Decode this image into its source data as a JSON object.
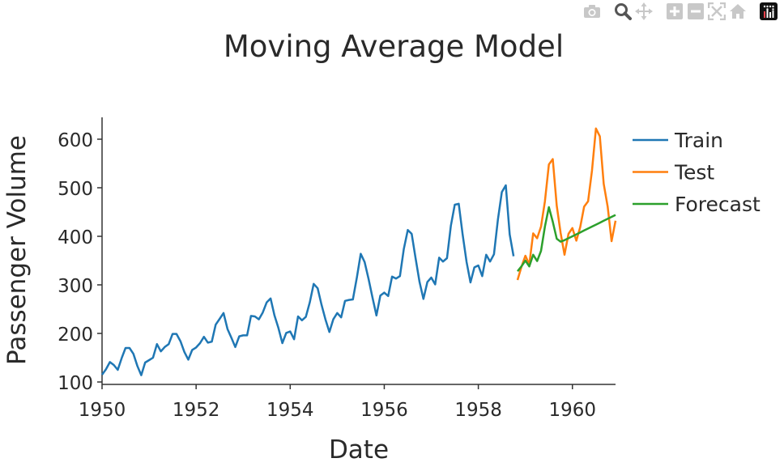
{
  "toolbar": {
    "buttons": [
      {
        "name": "camera-icon",
        "label": "Download plot as a png"
      },
      {
        "name": "zoom-icon",
        "label": "Zoom"
      },
      {
        "name": "pan-icon",
        "label": "Pan"
      },
      {
        "name": "zoom-in-icon",
        "label": "Zoom in"
      },
      {
        "name": "zoom-out-icon",
        "label": "Zoom out"
      },
      {
        "name": "autoscale-icon",
        "label": "Autoscale"
      },
      {
        "name": "home-icon",
        "label": "Reset axes"
      },
      {
        "name": "plotly-logo-icon",
        "label": "Produced with Plotly"
      }
    ],
    "active_button": "zoom-icon",
    "icon_color": "#c8c8c8",
    "active_icon_color": "#555555"
  },
  "chart_data": {
    "type": "line",
    "title": "Moving Average Model",
    "xlabel": "Date",
    "ylabel": "Passenger Volume",
    "xlim": [
      1950.0,
      1960.917
    ],
    "ylim": [
      95,
      645
    ],
    "x_ticks": [
      1950,
      1952,
      1954,
      1956,
      1958,
      1960
    ],
    "y_ticks": [
      100,
      200,
      300,
      400,
      500,
      600
    ],
    "grid": false,
    "legend_position": "right",
    "series": [
      {
        "name": "Train",
        "color": "#1f77b4",
        "x_start": 1950.0,
        "x_step": 0.08333,
        "values": [
          115,
          126,
          141,
          135,
          125,
          149,
          170,
          170,
          158,
          133,
          114,
          140,
          145,
          150,
          178,
          163,
          172,
          178,
          199,
          199,
          184,
          162,
          146,
          166,
          171,
          180,
          193,
          181,
          183,
          218,
          230,
          242,
          209,
          191,
          172,
          194,
          196,
          196,
          236,
          235,
          229,
          243,
          264,
          272,
          237,
          211,
          180,
          201,
          204,
          188,
          235,
          227,
          234,
          264,
          302,
          293,
          259,
          229,
          203,
          229,
          242,
          233,
          267,
          269,
          270,
          315,
          364,
          347,
          312,
          274,
          237,
          278,
          284,
          277,
          317,
          313,
          318,
          374,
          413,
          405,
          355,
          306,
          271,
          306,
          315,
          301,
          356,
          348,
          355,
          422,
          465,
          467,
          404,
          347,
          305,
          336,
          340,
          318,
          362,
          348,
          363,
          435,
          491,
          505,
          404,
          359
        ]
      },
      {
        "name": "Test",
        "color": "#ff7f0e",
        "x_start": 1958.833,
        "x_step": 0.08333,
        "values": [
          310,
          337,
          360,
          342,
          406,
          396,
          420,
          472,
          548,
          559,
          463,
          407,
          362,
          405,
          417,
          391,
          419,
          461,
          472,
          535,
          622,
          606,
          508,
          461,
          390,
          432
        ]
      },
      {
        "name": "Forecast",
        "color": "#2ca02c",
        "x_start": 1958.833,
        "x_step": 0.08333,
        "values": [
          328,
          338,
          350,
          338,
          362,
          349,
          370,
          420,
          460,
          430,
          395,
          389,
          392,
          396,
          400,
          404,
          408,
          412,
          416,
          420,
          424,
          428,
          432,
          436,
          440,
          444
        ]
      }
    ]
  }
}
